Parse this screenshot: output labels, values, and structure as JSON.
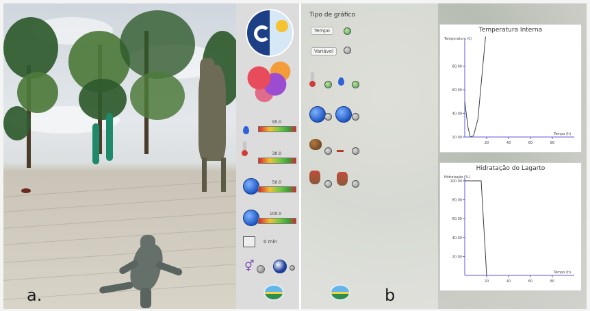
{
  "panel_a": {
    "letter": "a."
  },
  "hud": {
    "meters": [
      {
        "icon": "water-drop-icon",
        "caption": "95.0",
        "level": 0.62
      },
      {
        "icon": "thermometer-icon",
        "caption": "30.0",
        "level": 0.55
      },
      {
        "icon": "globe-icon",
        "caption": "50.0",
        "level": 0.45
      },
      {
        "icon": "globe-icon",
        "caption": "100.0",
        "level": 0.5
      }
    ],
    "clock_label": "0 min",
    "icons": [
      "day-night-icon",
      "thermal-map-icon",
      "clock-icon",
      "gender-icon",
      "camera-icon",
      "app-logo-icon"
    ]
  },
  "panel_b": {
    "letter": "b",
    "tipo_title": "Tipo de gráfico",
    "options": [
      {
        "label": "Tempo",
        "selected": true
      },
      {
        "label": "Variável",
        "selected": false
      }
    ],
    "variable_rows": [
      {
        "icons": [
          "thermometer-icon",
          "water-drop-icon"
        ],
        "selected": [
          true,
          true
        ]
      },
      {
        "icons": [
          "globe-icon",
          "globe-icon"
        ],
        "selected": [
          false,
          false
        ]
      },
      {
        "icons": [
          "rock-icon",
          "lizard-icon"
        ],
        "selected": [
          false,
          false
        ]
      },
      {
        "icons": [
          "lizard-icon",
          "lizard-icon"
        ],
        "selected": [
          false,
          false
        ]
      }
    ]
  },
  "chart_data": [
    {
      "type": "line",
      "title": "Temperatura Interna",
      "ylabel": "Temperatura (C)",
      "xlabel": "Tempo (h)",
      "x": [
        0,
        3,
        5,
        8,
        12,
        19
      ],
      "y": [
        50,
        28,
        20,
        21,
        35,
        105
      ],
      "xlim": [
        0,
        100
      ],
      "ylim": [
        20,
        100
      ],
      "xticks": [
        "20",
        "40",
        "60",
        "80"
      ],
      "yticks": [
        "20.00",
        "40.00",
        "60.00",
        "80.00"
      ],
      "line_color": "#3d3d3d",
      "axis_color": "#5b57d8"
    },
    {
      "type": "line",
      "title": "Hidratação do Lagarto",
      "ylabel": "Hidratação (%)",
      "xlabel": "Tempo (h)",
      "x": [
        0,
        10,
        15,
        20
      ],
      "y": [
        100,
        100,
        100,
        0
      ],
      "xlim": [
        0,
        100
      ],
      "ylim": [
        0,
        100
      ],
      "xticks": [
        "20",
        "40",
        "60",
        "80"
      ],
      "yticks": [
        "20.00",
        "40.00",
        "60.00",
        "80.00",
        "100.00"
      ],
      "line_color": "#3d3d3d",
      "axis_color": "#5b57d8"
    }
  ]
}
